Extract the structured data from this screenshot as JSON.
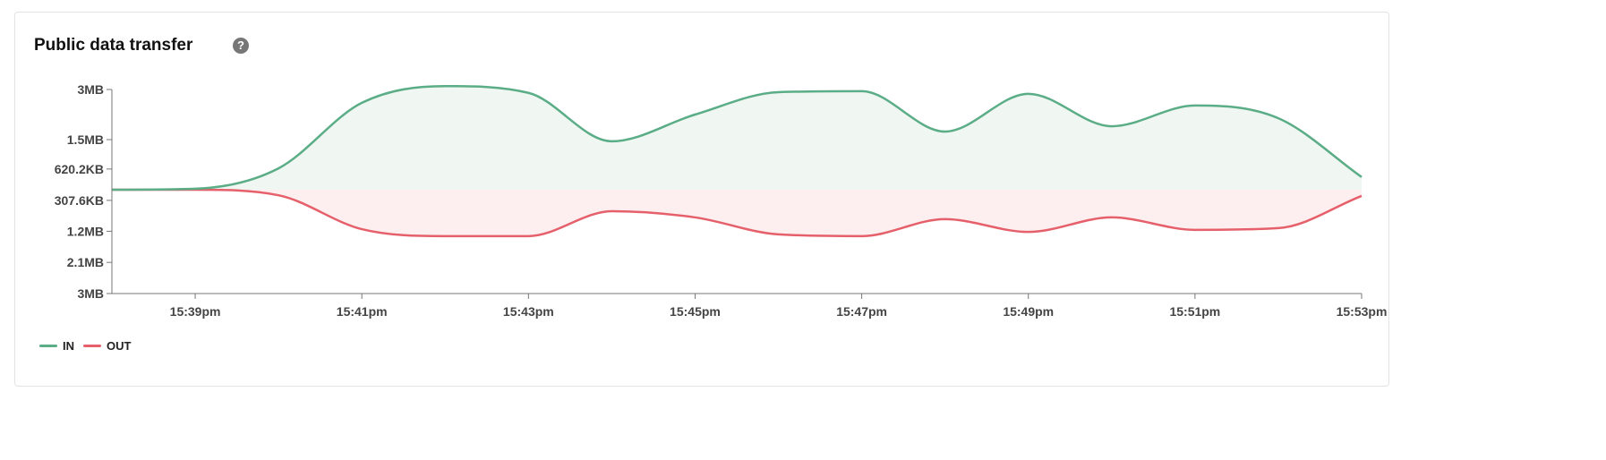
{
  "card": {
    "title": "Public data transfer",
    "help_icon": "question-circle-icon"
  },
  "chart_data": {
    "type": "area",
    "title": "Public data transfer",
    "x": [
      "15:38",
      "15:39",
      "15:40",
      "15:41",
      "15:42",
      "15:43",
      "15:44",
      "15:45",
      "15:46",
      "15:47",
      "15:48",
      "15:49",
      "15:50",
      "15:51",
      "15:52",
      "15:53"
    ],
    "x_tick_labels": [
      "15:39pm",
      "15:41pm",
      "15:43pm",
      "15:45pm",
      "15:47pm",
      "15:49pm",
      "15:51pm",
      "15:53pm"
    ],
    "x_tick_values": [
      "15:39",
      "15:41",
      "15:43",
      "15:45",
      "15:47",
      "15:49",
      "15:51",
      "15:53"
    ],
    "y_unit": "MB",
    "y_tick_labels": [
      {
        "label": "3MB",
        "value": 3
      },
      {
        "label": "1.5MB",
        "value": 1.5
      },
      {
        "label": "620.2KB",
        "value": 0.62
      },
      {
        "label": "307.6KB",
        "value": -0.3076
      },
      {
        "label": "1.2MB",
        "value": -1.2
      },
      {
        "label": "2.1MB",
        "value": -2.1
      },
      {
        "label": "3MB",
        "value": -3
      }
    ],
    "ylim": [
      -3,
      3
    ],
    "mirrored": true,
    "grid": false,
    "legend_position": "bottom-left",
    "series": [
      {
        "name": "IN",
        "color": "#5aad86",
        "fill": "#f0f6f1",
        "direction": "up",
        "values": [
          0,
          0.03,
          0.64,
          2.6,
          3.1,
          2.9,
          1.45,
          2.25,
          2.92,
          2.95,
          1.74,
          2.87,
          1.9,
          2.52,
          2.14,
          0.38
        ]
      },
      {
        "name": "OUT",
        "color": "#e5606a",
        "fill": "#fdefef",
        "direction": "down",
        "values": [
          0,
          0,
          0.16,
          1.14,
          1.34,
          1.34,
          0.62,
          0.8,
          1.29,
          1.34,
          0.85,
          1.22,
          0.8,
          1.16,
          1.11,
          0.18
        ]
      }
    ]
  }
}
